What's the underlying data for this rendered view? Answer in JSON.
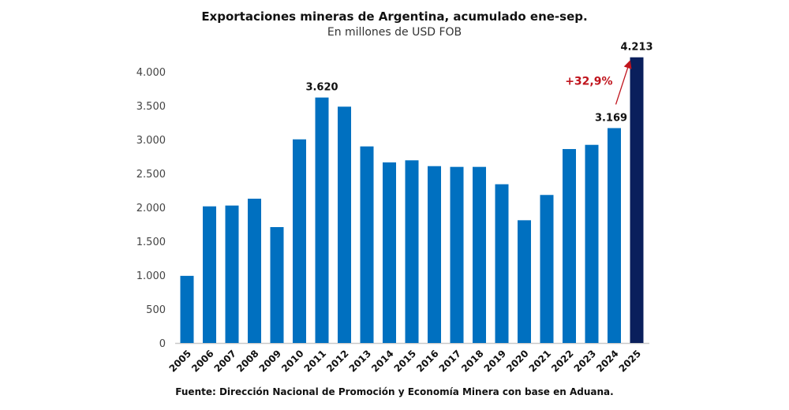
{
  "chart_data": {
    "type": "bar",
    "title": "Exportaciones mineras de Argentina, acumulado ene-sep.",
    "subtitle": "En millones de USD FOB",
    "source": "Fuente: Dirección Nacional de Promoción y Economía Minera con base en Aduana.",
    "categories": [
      "2005",
      "2006",
      "2007",
      "2008",
      "2009",
      "2010",
      "2011",
      "2012",
      "2013",
      "2014",
      "2015",
      "2016",
      "2017",
      "2018",
      "2019",
      "2020",
      "2021",
      "2022",
      "2023",
      "2024",
      "2025"
    ],
    "values": [
      990,
      2015,
      2027,
      2128,
      1709,
      3003,
      3620,
      3485,
      2899,
      2663,
      2694,
      2608,
      2597,
      2597,
      2341,
      1810,
      2183,
      2860,
      2922,
      3169,
      4213
    ],
    "ylim": [
      0,
      4000
    ],
    "yticks": [
      0,
      500,
      1000,
      1500,
      2000,
      2500,
      3000,
      3500,
      4000
    ],
    "ytick_labels": [
      "0",
      "500",
      "1.000",
      "1.500",
      "2.000",
      "2.500",
      "3.000",
      "3.500",
      "4.000"
    ],
    "grid": false,
    "data_labels": [
      {
        "category": "2011",
        "text": "3.620"
      },
      {
        "category": "2024",
        "text": "3.169"
      },
      {
        "category": "2025",
        "text": "4.213"
      }
    ],
    "annotation": {
      "text": "+32,9%",
      "from": "2024",
      "to": "2025",
      "color": "#c0141d"
    },
    "colors": {
      "bar": "#0070c0",
      "highlight": "#0a1f5c",
      "axis": "#c8c8c8"
    },
    "highlight_category": "2025"
  }
}
